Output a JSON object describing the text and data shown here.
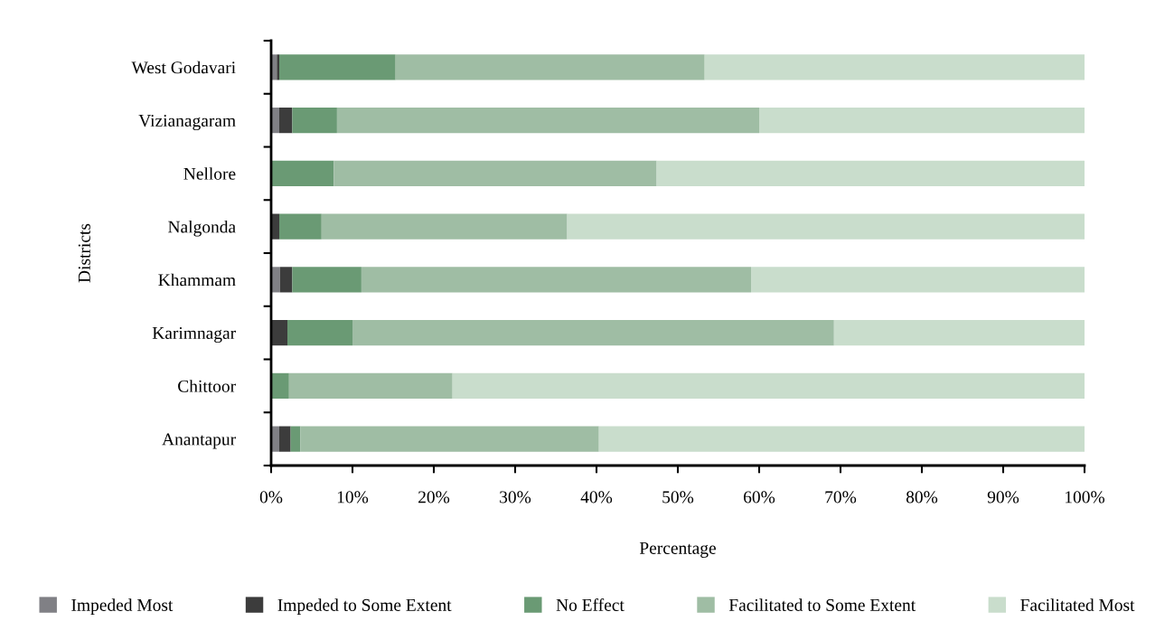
{
  "chart_data": {
    "type": "bar",
    "orientation": "horizontal",
    "stacked": true,
    "xlabel": "Percentage",
    "ylabel": "Districts",
    "categories": [
      "West Godavari",
      "Vizianagaram",
      "Nellore",
      "Nalgonda",
      "Khammam",
      "Karimnagar",
      "Chittoor",
      "Anantapur"
    ],
    "series": [
      {
        "name": "Impeded Most",
        "color": "#808085",
        "values": [
          0.7,
          1.0,
          0,
          0,
          1.1,
          0,
          0,
          1.0
        ]
      },
      {
        "name": "Impeded to Some Extent",
        "color": "#3c3c3c",
        "values": [
          0.3,
          1.6,
          0,
          1.0,
          1.5,
          2.0,
          0,
          1.4
        ]
      },
      {
        "name": "No Effect",
        "color": "#6a9a74",
        "values": [
          14.3,
          5.5,
          7.7,
          5.2,
          8.5,
          8.0,
          2.2,
          1.2
        ]
      },
      {
        "name": "Facilitated to Some Extent",
        "color": "#9fbda4",
        "values": [
          38.0,
          51.9,
          39.7,
          30.2,
          47.9,
          59.2,
          20.1,
          36.7
        ]
      },
      {
        "name": "Facilitated Most",
        "color": "#c9ddcc",
        "values": [
          46.7,
          40.0,
          52.6,
          63.6,
          41.0,
          30.8,
          77.7,
          59.7
        ]
      }
    ],
    "xlim": [
      0,
      100
    ],
    "xticks": [
      {
        "value": 0,
        "label": "0%"
      },
      {
        "value": 10,
        "label": "10%"
      },
      {
        "value": 20,
        "label": "20%"
      },
      {
        "value": 30,
        "label": "30%"
      },
      {
        "value": 40,
        "label": "40%"
      },
      {
        "value": 50,
        "label": "50%"
      },
      {
        "value": 60,
        "label": "60%"
      },
      {
        "value": 70,
        "label": "70%"
      },
      {
        "value": 80,
        "label": "80%"
      },
      {
        "value": 90,
        "label": "90%"
      },
      {
        "value": 100,
        "label": "100%"
      }
    ],
    "grid": false,
    "legend": "bottom"
  }
}
